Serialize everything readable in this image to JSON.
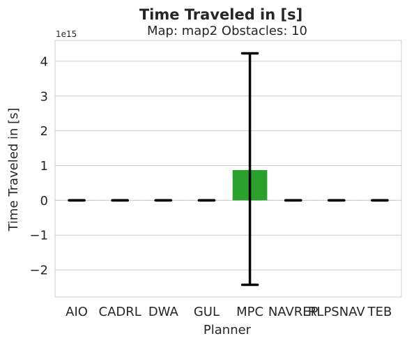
{
  "chart_data": {
    "type": "bar",
    "suptitle": "Time Traveled in [s]",
    "title": "Map: map2 Obstacles: 10",
    "xlabel": "Planner",
    "ylabel": "Time Traveled in [s]",
    "y_offset_label": "1e15",
    "y_scale": 1000000000000000.0,
    "ylim": [
      -2.78,
      4.6
    ],
    "yticks": [
      -2,
      -1,
      0,
      1,
      2,
      3,
      4
    ],
    "ytick_labels": [
      "−2",
      "−1",
      "0",
      "1",
      "2",
      "3",
      "4"
    ],
    "grid": true,
    "zero_line": true,
    "categories": [
      "AIO",
      "CADRL",
      "DWA",
      "GUL",
      "MPC",
      "NAVREP",
      "RLPSNAV",
      "TEB"
    ],
    "values": [
      0,
      0,
      0,
      0,
      0.87,
      0,
      0,
      0
    ],
    "error_low": [
      0,
      0,
      0,
      0,
      -2.43,
      0,
      0,
      0
    ],
    "error_high": [
      0,
      0,
      0,
      0,
      4.23,
      0,
      0,
      0
    ],
    "bar_colors": [
      "#1f77b4",
      "#ff7f0e",
      "#2ca02c",
      "#d62728",
      "#2ca02c",
      "#8c564b",
      "#e377c2",
      "#7f7f7f"
    ],
    "errorbar_color": "#000000"
  }
}
